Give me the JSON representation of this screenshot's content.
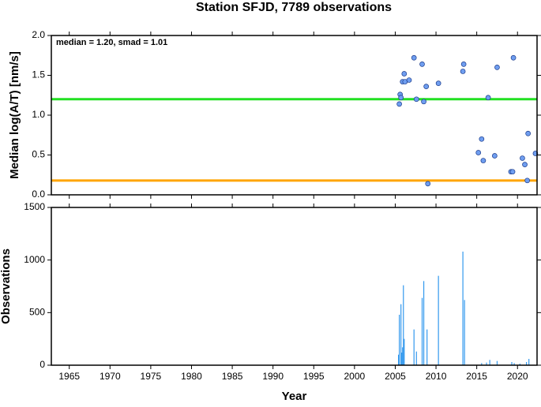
{
  "chart_data": [
    {
      "type": "scatter",
      "title": "Station SFJD, 7789 observations",
      "y_label": "Median log(A/T) [nm/s]",
      "annotation": "median = 1.20, smad = 1.01",
      "x": [
        2005.5,
        2005.6,
        2005.7,
        2005.9,
        2006.1,
        2006.2,
        2006.7,
        2007.3,
        2007.6,
        2008.3,
        2008.5,
        2008.8,
        2009.0,
        2010.3,
        2013.3,
        2013.4,
        2015.2,
        2015.6,
        2015.8,
        2016.4,
        2017.2,
        2017.5,
        2019.2,
        2019.4,
        2019.5,
        2020.6,
        2020.9,
        2021.2,
        2021.3,
        2022.2
      ],
      "values": [
        1.14,
        1.26,
        1.22,
        1.42,
        1.52,
        1.42,
        1.44,
        1.72,
        1.2,
        1.64,
        1.17,
        1.36,
        0.14,
        1.4,
        1.55,
        1.64,
        0.53,
        0.7,
        0.43,
        1.22,
        0.49,
        1.6,
        0.29,
        0.29,
        1.72,
        0.46,
        0.38,
        0.18,
        0.77,
        0.52
      ],
      "color": "#6f9ef0",
      "hlines": [
        {
          "value": 1.2,
          "color": "#22e022"
        },
        {
          "value": 0.18,
          "color": "#ffa500"
        }
      ],
      "xlim": [
        1962.8,
        2022.4
      ],
      "xticks": [
        1965,
        1970,
        1975,
        1980,
        1985,
        1990,
        1995,
        2000,
        2005,
        2010,
        2015,
        2020
      ],
      "ylim": [
        0,
        2
      ],
      "yticks": [
        {
          "value": 0,
          "label": "0.0"
        },
        0.5,
        {
          "value": 1,
          "label": "1.0"
        },
        1.5,
        {
          "value": 2,
          "label": "2.0"
        }
      ]
    },
    {
      "type": "bar",
      "y_label": "Observations",
      "x_label": "Year",
      "x": [
        2005.4,
        2005.5,
        2005.7,
        2005.8,
        2005.9,
        2006.0,
        2006.1,
        2007.3,
        2007.6,
        2008.3,
        2008.5,
        2008.9,
        2010.3,
        2013.3,
        2013.5,
        2015.6,
        2016.2,
        2016.6,
        2017.5,
        2019.3,
        2019.6,
        2020.3,
        2021.1,
        2021.4
      ],
      "values": [
        100,
        480,
        580,
        120,
        170,
        760,
        250,
        340,
        130,
        640,
        800,
        340,
        850,
        1080,
        620,
        20,
        25,
        50,
        40,
        30,
        20,
        15,
        30,
        60
      ],
      "color": "#3399ee",
      "xlim": [
        1962.8,
        2022.4
      ],
      "xticks": [
        1965,
        1970,
        1975,
        1980,
        1985,
        1990,
        1995,
        2000,
        2005,
        2010,
        2015,
        2020
      ],
      "ylim": [
        0,
        1500
      ],
      "yticks": [
        0,
        500,
        1000,
        1500
      ]
    }
  ]
}
